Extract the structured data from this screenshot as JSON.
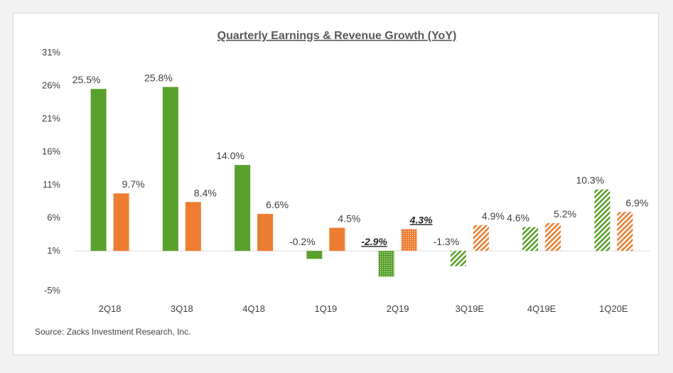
{
  "chart_data": {
    "type": "bar",
    "title": "Quarterly Earnings & Revenue Growth (YoY)",
    "source": "Source: Zacks Investment Research, Inc.",
    "categories": [
      "2Q18",
      "3Q18",
      "4Q18",
      "1Q19",
      "2Q19",
      "3Q19E",
      "4Q19E",
      "1Q20E"
    ],
    "y_ticks": [
      "31%",
      "26%",
      "21%",
      "16%",
      "11%",
      "6%",
      "1%",
      "-5%"
    ],
    "y_tick_values": [
      31,
      26,
      21,
      16,
      11,
      6,
      1,
      -5
    ],
    "ylim": [
      -5,
      31
    ],
    "baseline": 1,
    "estimate_start_index": 5,
    "grid": false,
    "series": [
      {
        "values": [
          25.5,
          25.8,
          14.0,
          -0.2,
          -2.9,
          -1.3,
          4.6,
          10.3
        ],
        "labels": [
          "25.5%",
          "25.8%",
          "14.0%",
          "-0.2%",
          "-2.9%",
          "-1.3%",
          "4.6%",
          "10.3%"
        ],
        "color": "#5aa02c",
        "hatched_index_from": 4,
        "bold_label_index": 4
      },
      {
        "values": [
          9.7,
          8.4,
          6.6,
          4.5,
          4.3,
          4.9,
          5.2,
          6.9
        ],
        "labels": [
          "9.7%",
          "8.4%",
          "6.6%",
          "4.5%",
          "4.3%",
          "4.9%",
          "5.2%",
          "6.9%"
        ],
        "color": "#ed7d31",
        "hatched_index_from": 4,
        "bold_label_index": 4
      }
    ]
  }
}
